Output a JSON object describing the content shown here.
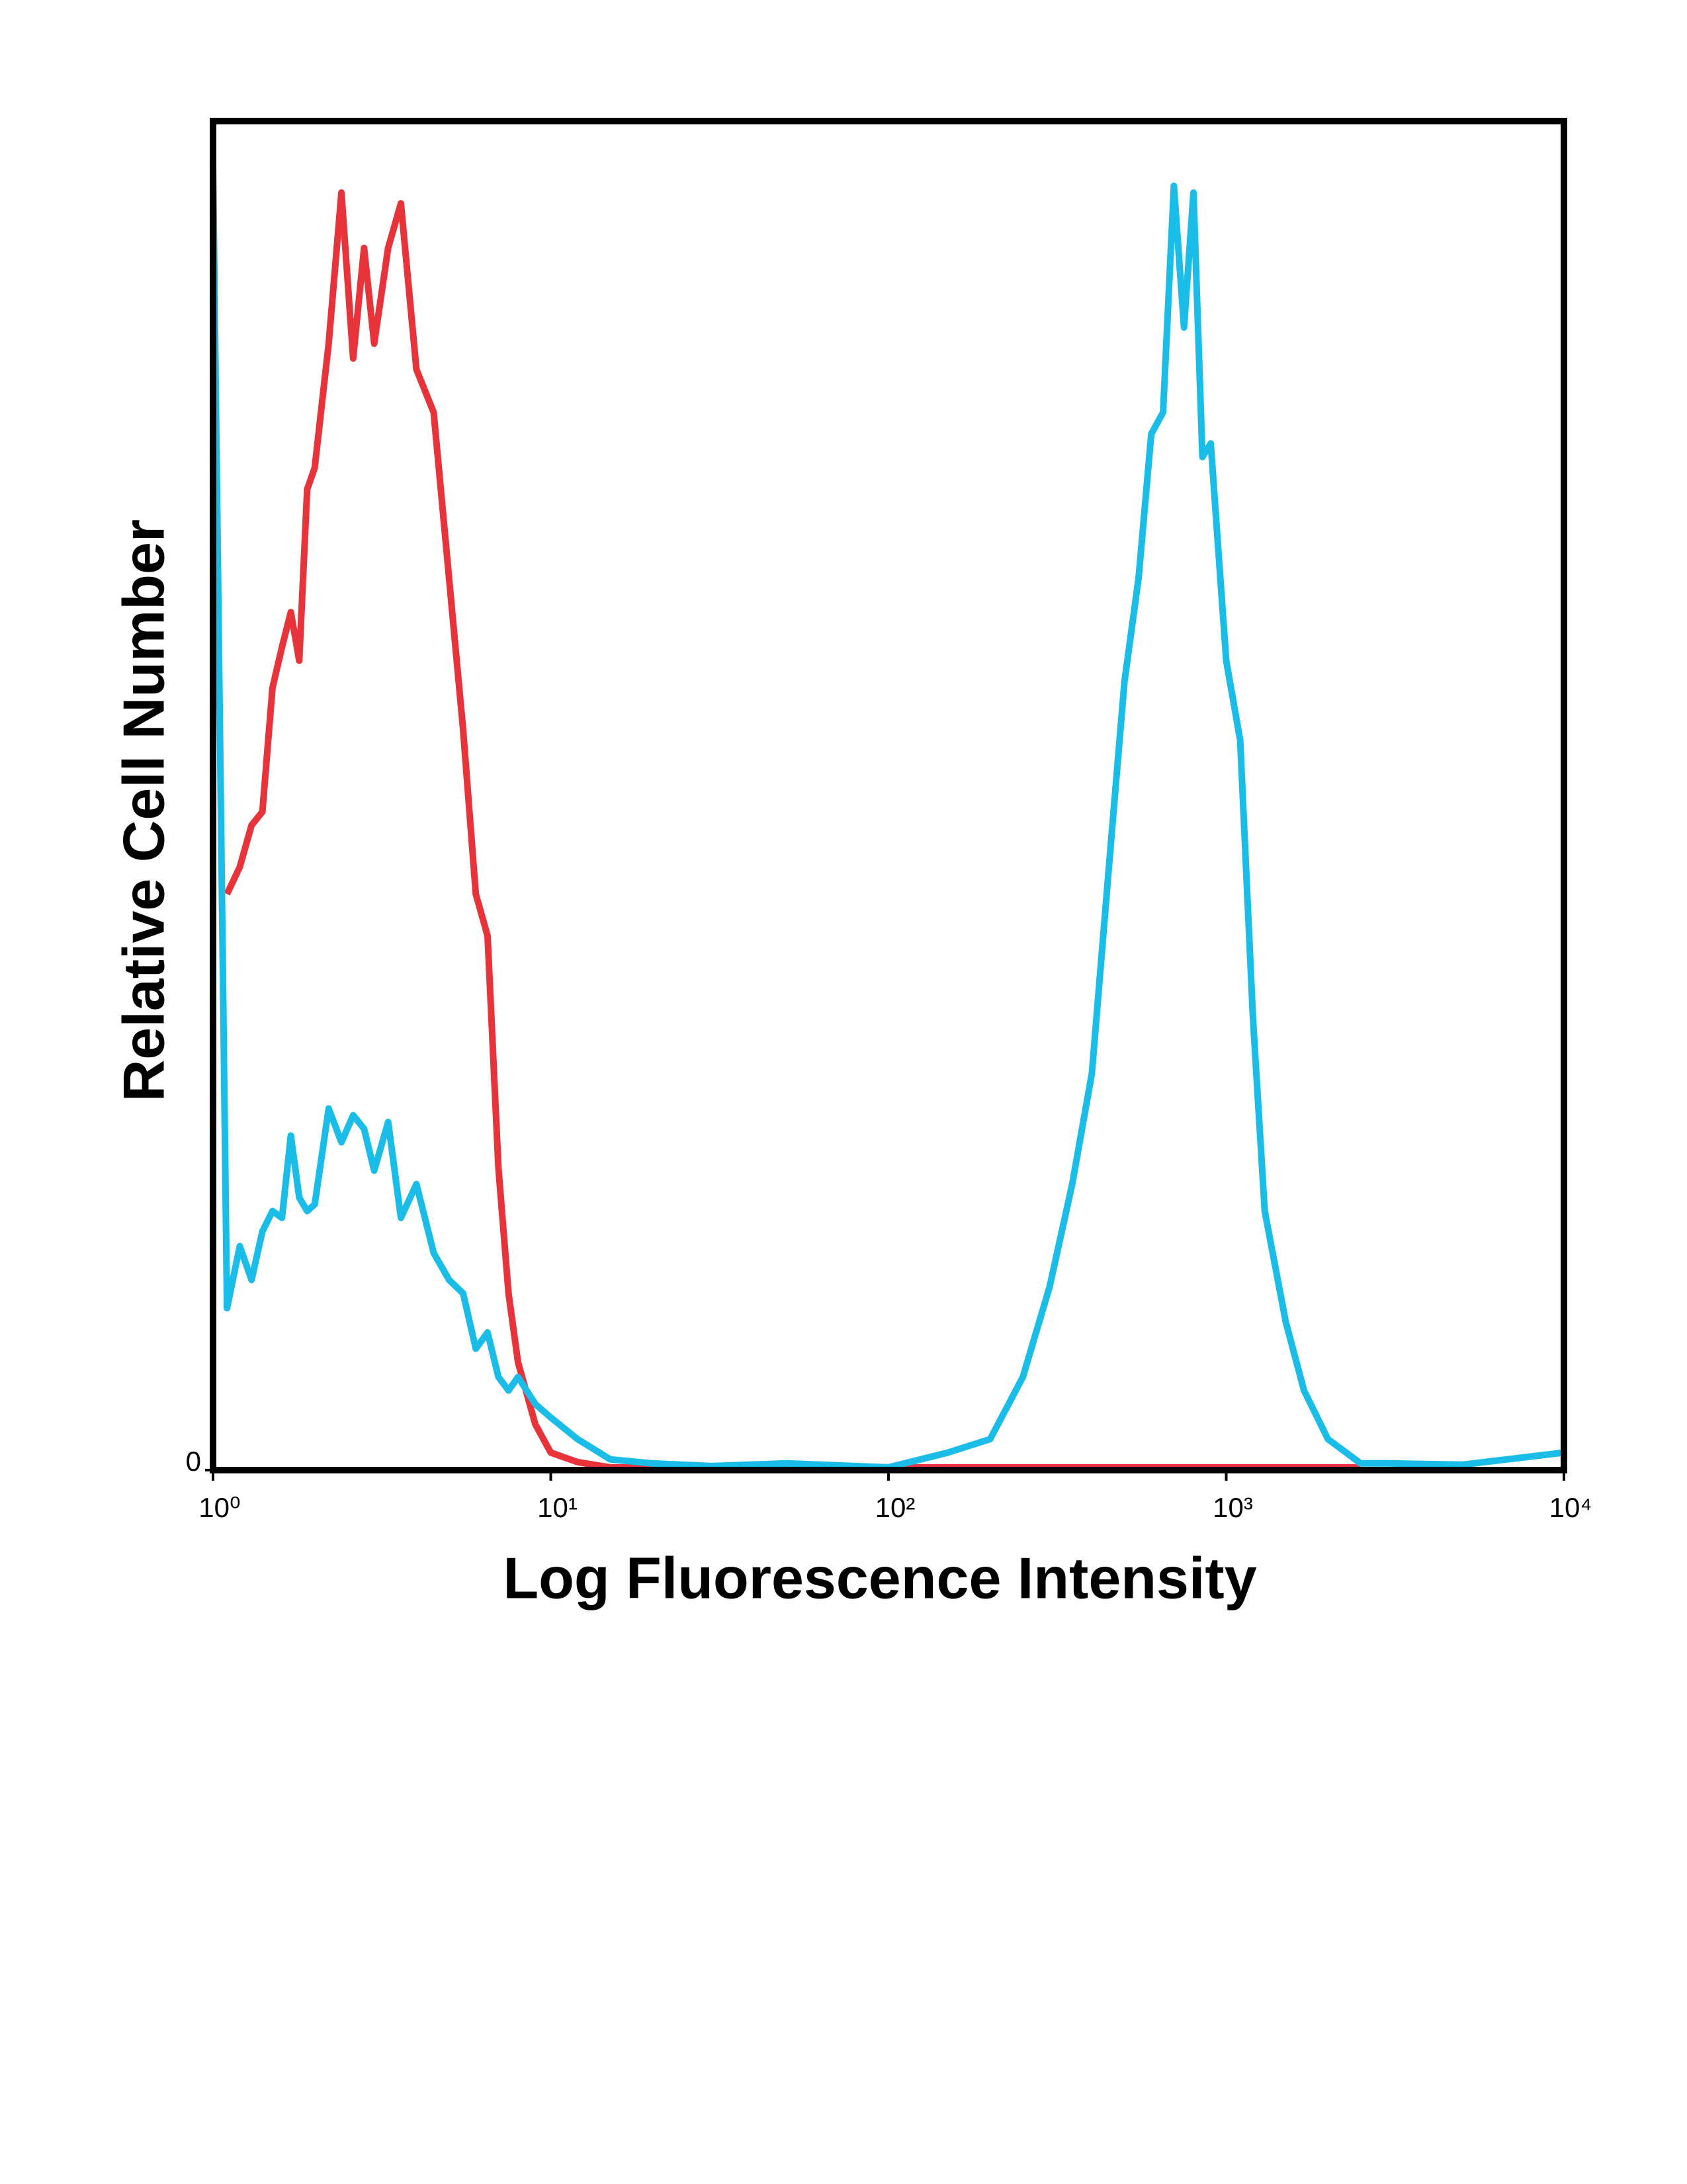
{
  "chart_data": {
    "type": "line",
    "xlabel": "Log Fluorescence Intensity",
    "ylabel": "Relative Cell Number",
    "xscale": "log",
    "xlim": [
      1,
      10000
    ],
    "xticks": [
      {
        "value": 1,
        "label": "10⁰"
      },
      {
        "value": 10,
        "label": "10¹"
      },
      {
        "value": 100,
        "label": "10²"
      },
      {
        "value": 1000,
        "label": "10³"
      },
      {
        "value": 10000,
        "label": "10⁴"
      }
    ],
    "ylim": [
      0,
      100
    ],
    "yticks": [
      0
    ],
    "x": [
      1.0,
      1.1,
      1.2,
      1.3,
      1.4,
      1.5,
      1.6,
      1.7,
      1.8,
      1.9,
      2.0,
      2.2,
      2.4,
      2.6,
      2.8,
      3.0,
      3.3,
      3.6,
      4.0,
      4.5,
      5.0,
      5.5,
      6.0,
      6.5,
      7.0,
      7.5,
      8.0,
      9.0,
      10,
      12,
      15,
      20,
      30,
      50,
      100,
      150,
      200,
      250,
      300,
      350,
      400,
      450,
      500,
      550,
      600,
      650,
      700,
      750,
      800,
      850,
      900,
      1000,
      1100,
      1200,
      1300,
      1500,
      1700,
      2000,
      2500,
      3000,
      5000,
      10000
    ],
    "series": [
      {
        "color": "#e8333a",
        "values": [
          null,
          42.7,
          44.7,
          47.8,
          48.8,
          58,
          61,
          63.6,
          60,
          72.7,
          74.3,
          83.5,
          94.7,
          82.4,
          90.6,
          83.5,
          90.6,
          93.9,
          81.6,
          78.4,
          66.1,
          54.9,
          42.7,
          39.6,
          22.4,
          13.1,
          8,
          3.4,
          1.3,
          0.6,
          0.2,
          0.2,
          0.2,
          0.2,
          0.2,
          0.2,
          0.2,
          0.2,
          0.2,
          0.2,
          0.2,
          0.2,
          0.2,
          0.2,
          0.2,
          0.2,
          0.2,
          0.2,
          0.2,
          0.2,
          0.2,
          0.2,
          0.2,
          0.2,
          0.2,
          0.2,
          0.2,
          0.2,
          0.2,
          null,
          null,
          null
        ]
      },
      {
        "color": "#19bde8",
        "values": [
          96.7,
          12,
          16.6,
          14.1,
          17.7,
          19.2,
          18.7,
          24.8,
          20.2,
          19.2,
          19.7,
          26.8,
          24.3,
          26.3,
          25.3,
          22.2,
          25.8,
          18.7,
          21.2,
          16.1,
          14.1,
          13.1,
          9,
          10.2,
          6.9,
          5.9,
          6.9,
          4.9,
          3.9,
          2.3,
          0.8,
          0.5,
          0.3,
          0.5,
          0.2,
          1.3,
          2.3,
          6.9,
          13.6,
          21.2,
          29.4,
          44.9,
          58.5,
          66.1,
          76.8,
          78.4,
          95.2,
          84.7,
          94.7,
          75.1,
          76.1,
          60,
          54.1,
          33.5,
          19.2,
          11,
          5.9,
          2.3,
          0.5,
          0.5,
          0.4,
          1.3
        ]
      }
    ]
  }
}
